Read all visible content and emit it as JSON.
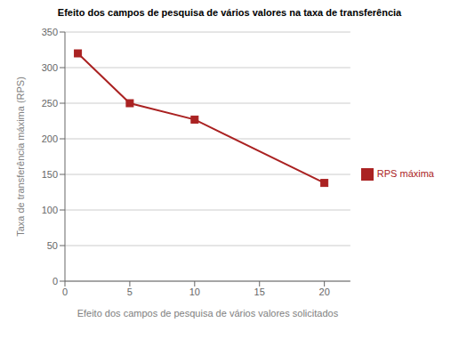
{
  "chart_data": {
    "type": "line",
    "title": "Efeito dos campos de pesquisa de vários valores na taxa de transferência",
    "xlabel": "Efeito dos campos de pesquisa de vários valores solicitados",
    "ylabel": "Taxa de transferência máxima (RPS)",
    "x": [
      1,
      5,
      10,
      20
    ],
    "series": [
      {
        "name": "RPS máxima",
        "color": "#aa2222",
        "marker": "square",
        "values": [
          320,
          250,
          227,
          138
        ]
      }
    ],
    "xlim": [
      0,
      22
    ],
    "ylim": [
      0,
      350
    ],
    "xticks": [
      0,
      5,
      10,
      15,
      20
    ],
    "yticks": [
      0,
      50,
      100,
      150,
      200,
      250,
      300,
      350
    ],
    "grid": "y",
    "legend": "right"
  }
}
